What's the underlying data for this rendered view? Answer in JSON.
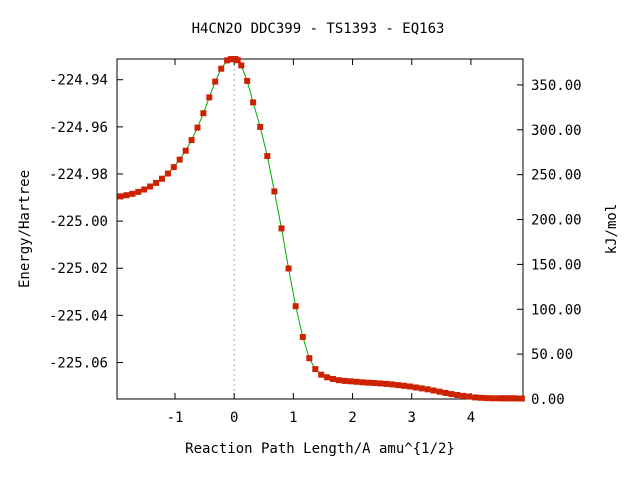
{
  "chart_data": {
    "type": "line",
    "title": "H4CN2O   DDC399 - TS1393 - EQ163",
    "xlabel": "Reaction Path Length/A amu^{1/2}",
    "ylabel": "Energy/Hartree",
    "y2label": "kJ/mol",
    "xlim": [
      -1.98,
      4.88
    ],
    "ylim": [
      -225.0755,
      -224.9312
    ],
    "y2lim": [
      0,
      378.9
    ],
    "grid": false,
    "ts_marker_x": 0,
    "x_ticks": [
      "-1",
      "0",
      "1",
      "2",
      "3",
      "4"
    ],
    "y_ticks": [
      "-224.94",
      "-224.96",
      "-224.98",
      "-225.00",
      "-225.02",
      "-225.04",
      "-225.06"
    ],
    "y2_ticks": [
      "350.00",
      "300.00",
      "250.00",
      "200.00",
      "150.00",
      "100.00",
      "50.00",
      "0.00"
    ],
    "line_color": "#00aa00",
    "marker_color": "#cc2200",
    "series": [
      {
        "x": [
          -1.92,
          -1.82,
          -1.72,
          -1.62,
          -1.52,
          -1.42,
          -1.32,
          -1.22,
          -1.12,
          -1.02,
          -0.92,
          -0.82,
          -0.72,
          -0.62,
          -0.52,
          -0.42,
          -0.32,
          -0.22,
          -0.12,
          -0.06,
          -0.02,
          0.02,
          0.06,
          0.12,
          0.22,
          0.32,
          0.44,
          0.56,
          0.68,
          0.8,
          0.92,
          1.04,
          1.16,
          1.27,
          1.37,
          1.47,
          1.57,
          1.67,
          1.77,
          1.87,
          1.97,
          2.07,
          2.17,
          2.27,
          2.37,
          2.47,
          2.57,
          2.67,
          2.77,
          2.87,
          2.97,
          3.07,
          3.17,
          3.27,
          3.37,
          3.47,
          3.57,
          3.67,
          3.77,
          3.87,
          3.97,
          4.07,
          4.17,
          4.27,
          4.37,
          4.47,
          4.52,
          4.57,
          4.62,
          4.67,
          4.72,
          4.77,
          4.82,
          4.86
        ],
        "y": [
          -224.9895,
          -224.989,
          -224.9884,
          -224.9876,
          -224.9866,
          -224.9853,
          -224.9838,
          -224.982,
          -224.9798,
          -224.9771,
          -224.9739,
          -224.9701,
          -224.9656,
          -224.9603,
          -224.9542,
          -224.9475,
          -224.9408,
          -224.9353,
          -224.9318,
          -224.9313,
          -224.9312,
          -224.9312,
          -224.9317,
          -224.9339,
          -224.9405,
          -224.9496,
          -224.96,
          -224.9724,
          -224.9874,
          -225.0031,
          -225.0201,
          -225.0361,
          -225.0492,
          -225.0582,
          -225.0628,
          -225.0652,
          -225.0663,
          -225.067,
          -225.0675,
          -225.0678,
          -225.068,
          -225.0682,
          -225.0684,
          -225.0686,
          -225.0687,
          -225.0689,
          -225.0691,
          -225.0693,
          -225.0696,
          -225.0699,
          -225.0702,
          -225.0706,
          -225.071,
          -225.0714,
          -225.0719,
          -225.0724,
          -225.0729,
          -225.0734,
          -225.0738,
          -225.0742,
          -225.0745,
          -225.0748,
          -225.075,
          -225.0751,
          -225.0752,
          -225.0752,
          -225.0752,
          -225.0752,
          -225.0752,
          -225.0752,
          -225.0752,
          -225.0753,
          -225.0753,
          -225.0753
        ]
      }
    ]
  }
}
